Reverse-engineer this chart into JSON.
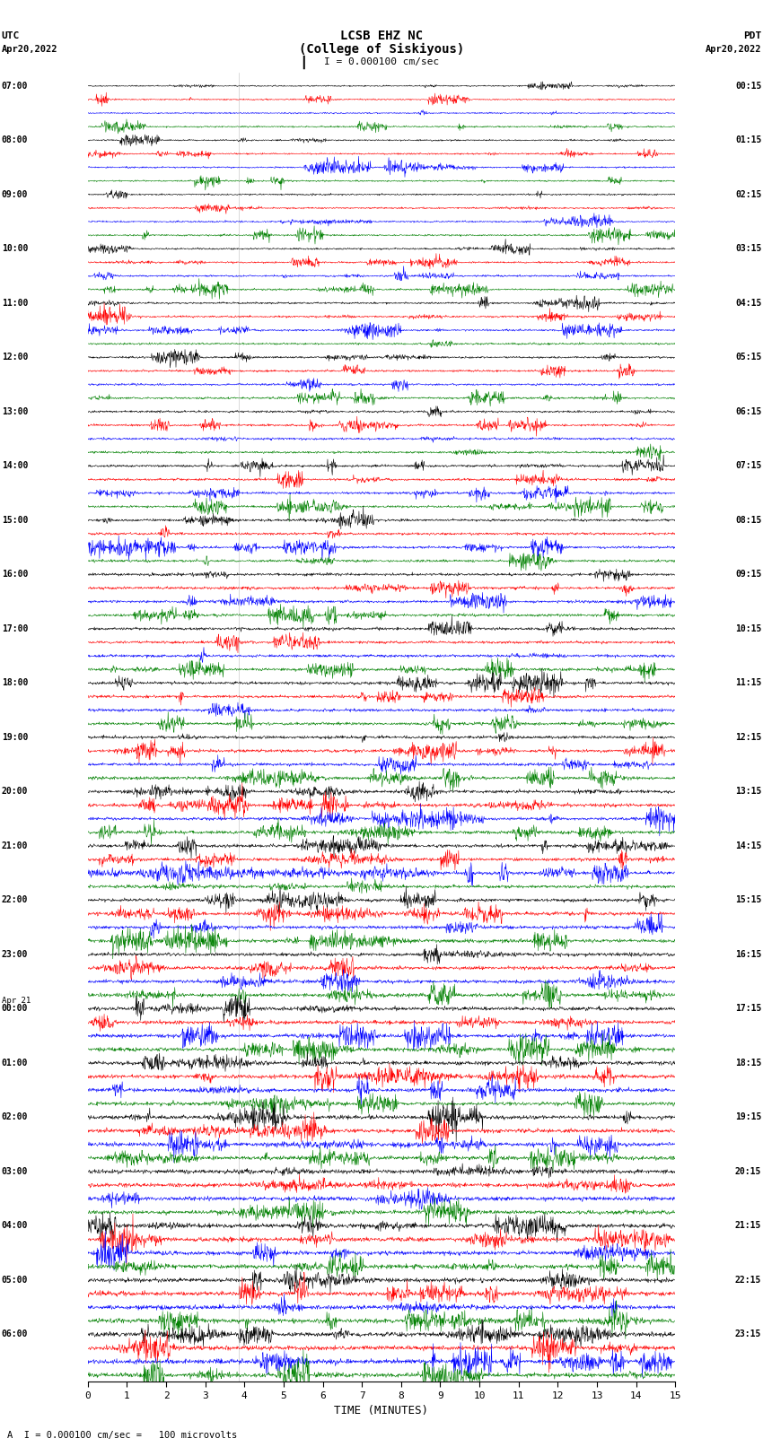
{
  "title_line1": "LCSB EHZ NC",
  "title_line2": "(College of Siskiyous)",
  "scale_label": "I = 0.000100 cm/sec",
  "xlabel": "TIME (MINUTES)",
  "bottom_note": "A  I = 0.000100 cm/sec =   100 microvolts",
  "xmin": 0,
  "xmax": 15,
  "num_traces": 96,
  "trace_colors_cycle": [
    "black",
    "red",
    "blue",
    "green"
  ],
  "left_times": [
    "07:00",
    "",
    "",
    "",
    "08:00",
    "",
    "",
    "",
    "09:00",
    "",
    "",
    "",
    "10:00",
    "",
    "",
    "",
    "11:00",
    "",
    "",
    "",
    "12:00",
    "",
    "",
    "",
    "13:00",
    "",
    "",
    "",
    "14:00",
    "",
    "",
    "",
    "15:00",
    "",
    "",
    "",
    "16:00",
    "",
    "",
    "",
    "17:00",
    "",
    "",
    "",
    "18:00",
    "",
    "",
    "",
    "19:00",
    "",
    "",
    "",
    "20:00",
    "",
    "",
    "",
    "21:00",
    "",
    "",
    "",
    "22:00",
    "",
    "",
    "",
    "23:00",
    "",
    "",
    "",
    "Apr 21\n00:00",
    "",
    "",
    "",
    "01:00",
    "",
    "",
    "",
    "02:00",
    "",
    "",
    "",
    "03:00",
    "",
    "",
    "",
    "04:00",
    "",
    "",
    "",
    "05:00",
    "",
    "",
    "",
    "06:00",
    "",
    "",
    ""
  ],
  "right_times": [
    "00:15",
    "",
    "",
    "",
    "01:15",
    "",
    "",
    "",
    "02:15",
    "",
    "",
    "",
    "03:15",
    "",
    "",
    "",
    "04:15",
    "",
    "",
    "",
    "05:15",
    "",
    "",
    "",
    "06:15",
    "",
    "",
    "",
    "07:15",
    "",
    "",
    "",
    "08:15",
    "",
    "",
    "",
    "09:15",
    "",
    "",
    "",
    "10:15",
    "",
    "",
    "",
    "11:15",
    "",
    "",
    "",
    "12:15",
    "",
    "",
    "",
    "13:15",
    "",
    "",
    "",
    "14:15",
    "",
    "",
    "",
    "15:15",
    "",
    "",
    "",
    "16:15",
    "",
    "",
    "",
    "17:15",
    "",
    "",
    "",
    "18:15",
    "",
    "",
    "",
    "19:15",
    "",
    "",
    "",
    "20:15",
    "",
    "",
    "",
    "21:15",
    "",
    "",
    "",
    "22:15",
    "",
    "",
    "",
    "23:15",
    "",
    "",
    ""
  ],
  "bg_color": "white",
  "trace_linewidth": 0.4,
  "amplitude_scale": 0.32,
  "noise_base": 0.07
}
